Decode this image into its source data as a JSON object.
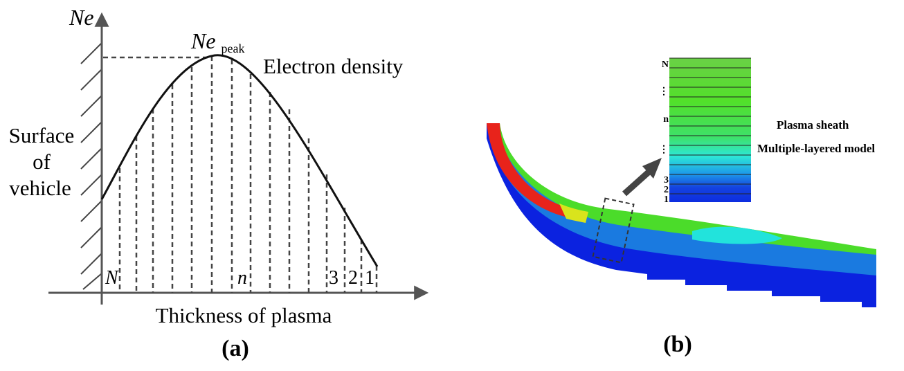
{
  "panel_a": {
    "y_axis_label": "Ne",
    "peak_label_main": "Ne",
    "peak_label_sub": "peak",
    "curve_label": "Electron density",
    "surface_label_line1": "Surface",
    "surface_label_line2": "of",
    "surface_label_line3": "vehicle",
    "x_axis_label": "Thickness of plasma",
    "layer_labels": {
      "N": "N",
      "n": "n",
      "three": "3",
      "two": "2",
      "one": "1"
    },
    "caption": "(a)"
  },
  "panel_b": {
    "stack_labels": {
      "N": "N",
      "dots_top": "⋮",
      "n": "n",
      "dots_mid": "⋮",
      "three": "3",
      "two": "2",
      "one": "1"
    },
    "desc_line1": "Plasma sheath",
    "desc_line2": "Multiple-layered model",
    "caption": "(b)"
  },
  "colors": {
    "line": "#111111",
    "dashed": "#444444",
    "axis": "#555555",
    "red": "#e8231b",
    "green": "#6fe021",
    "cyan": "#1fe6e0",
    "blue": "#1a6fd8",
    "dark_blue": "#0a22e0"
  }
}
